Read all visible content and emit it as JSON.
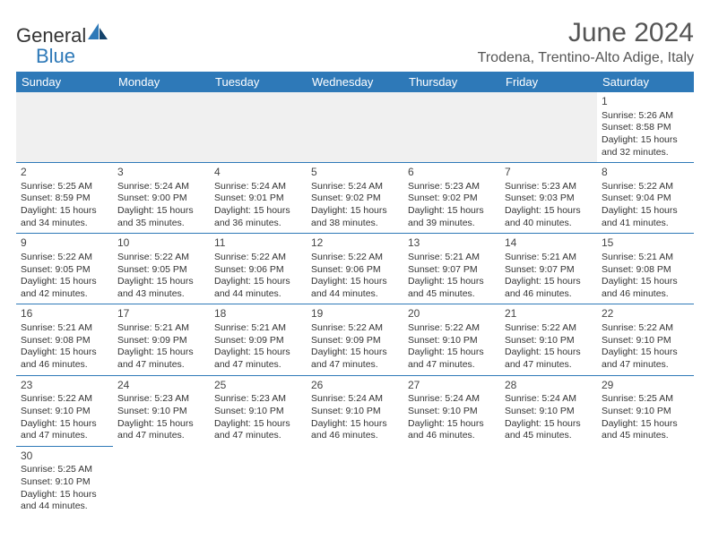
{
  "brand": {
    "part1": "General",
    "part2": "Blue"
  },
  "title": "June 2024",
  "location": "Trodena, Trentino-Alto Adige, Italy",
  "colors": {
    "header_bg": "#2e79b8",
    "header_text": "#ffffff",
    "rule": "#2e79b8",
    "blank_bg": "#f0f0f0",
    "body_text": "#333333",
    "title_text": "#555555"
  },
  "dayHeaders": [
    "Sunday",
    "Monday",
    "Tuesday",
    "Wednesday",
    "Thursday",
    "Friday",
    "Saturday"
  ],
  "weeks": [
    [
      null,
      null,
      null,
      null,
      null,
      null,
      {
        "n": "1",
        "sr": "Sunrise: 5:26 AM",
        "ss": "Sunset: 8:58 PM",
        "dl": "Daylight: 15 hours and 32 minutes."
      }
    ],
    [
      {
        "n": "2",
        "sr": "Sunrise: 5:25 AM",
        "ss": "Sunset: 8:59 PM",
        "dl": "Daylight: 15 hours and 34 minutes."
      },
      {
        "n": "3",
        "sr": "Sunrise: 5:24 AM",
        "ss": "Sunset: 9:00 PM",
        "dl": "Daylight: 15 hours and 35 minutes."
      },
      {
        "n": "4",
        "sr": "Sunrise: 5:24 AM",
        "ss": "Sunset: 9:01 PM",
        "dl": "Daylight: 15 hours and 36 minutes."
      },
      {
        "n": "5",
        "sr": "Sunrise: 5:24 AM",
        "ss": "Sunset: 9:02 PM",
        "dl": "Daylight: 15 hours and 38 minutes."
      },
      {
        "n": "6",
        "sr": "Sunrise: 5:23 AM",
        "ss": "Sunset: 9:02 PM",
        "dl": "Daylight: 15 hours and 39 minutes."
      },
      {
        "n": "7",
        "sr": "Sunrise: 5:23 AM",
        "ss": "Sunset: 9:03 PM",
        "dl": "Daylight: 15 hours and 40 minutes."
      },
      {
        "n": "8",
        "sr": "Sunrise: 5:22 AM",
        "ss": "Sunset: 9:04 PM",
        "dl": "Daylight: 15 hours and 41 minutes."
      }
    ],
    [
      {
        "n": "9",
        "sr": "Sunrise: 5:22 AM",
        "ss": "Sunset: 9:05 PM",
        "dl": "Daylight: 15 hours and 42 minutes."
      },
      {
        "n": "10",
        "sr": "Sunrise: 5:22 AM",
        "ss": "Sunset: 9:05 PM",
        "dl": "Daylight: 15 hours and 43 minutes."
      },
      {
        "n": "11",
        "sr": "Sunrise: 5:22 AM",
        "ss": "Sunset: 9:06 PM",
        "dl": "Daylight: 15 hours and 44 minutes."
      },
      {
        "n": "12",
        "sr": "Sunrise: 5:22 AM",
        "ss": "Sunset: 9:06 PM",
        "dl": "Daylight: 15 hours and 44 minutes."
      },
      {
        "n": "13",
        "sr": "Sunrise: 5:21 AM",
        "ss": "Sunset: 9:07 PM",
        "dl": "Daylight: 15 hours and 45 minutes."
      },
      {
        "n": "14",
        "sr": "Sunrise: 5:21 AM",
        "ss": "Sunset: 9:07 PM",
        "dl": "Daylight: 15 hours and 46 minutes."
      },
      {
        "n": "15",
        "sr": "Sunrise: 5:21 AM",
        "ss": "Sunset: 9:08 PM",
        "dl": "Daylight: 15 hours and 46 minutes."
      }
    ],
    [
      {
        "n": "16",
        "sr": "Sunrise: 5:21 AM",
        "ss": "Sunset: 9:08 PM",
        "dl": "Daylight: 15 hours and 46 minutes."
      },
      {
        "n": "17",
        "sr": "Sunrise: 5:21 AM",
        "ss": "Sunset: 9:09 PM",
        "dl": "Daylight: 15 hours and 47 minutes."
      },
      {
        "n": "18",
        "sr": "Sunrise: 5:21 AM",
        "ss": "Sunset: 9:09 PM",
        "dl": "Daylight: 15 hours and 47 minutes."
      },
      {
        "n": "19",
        "sr": "Sunrise: 5:22 AM",
        "ss": "Sunset: 9:09 PM",
        "dl": "Daylight: 15 hours and 47 minutes."
      },
      {
        "n": "20",
        "sr": "Sunrise: 5:22 AM",
        "ss": "Sunset: 9:10 PM",
        "dl": "Daylight: 15 hours and 47 minutes."
      },
      {
        "n": "21",
        "sr": "Sunrise: 5:22 AM",
        "ss": "Sunset: 9:10 PM",
        "dl": "Daylight: 15 hours and 47 minutes."
      },
      {
        "n": "22",
        "sr": "Sunrise: 5:22 AM",
        "ss": "Sunset: 9:10 PM",
        "dl": "Daylight: 15 hours and 47 minutes."
      }
    ],
    [
      {
        "n": "23",
        "sr": "Sunrise: 5:22 AM",
        "ss": "Sunset: 9:10 PM",
        "dl": "Daylight: 15 hours and 47 minutes."
      },
      {
        "n": "24",
        "sr": "Sunrise: 5:23 AM",
        "ss": "Sunset: 9:10 PM",
        "dl": "Daylight: 15 hours and 47 minutes."
      },
      {
        "n": "25",
        "sr": "Sunrise: 5:23 AM",
        "ss": "Sunset: 9:10 PM",
        "dl": "Daylight: 15 hours and 47 minutes."
      },
      {
        "n": "26",
        "sr": "Sunrise: 5:24 AM",
        "ss": "Sunset: 9:10 PM",
        "dl": "Daylight: 15 hours and 46 minutes."
      },
      {
        "n": "27",
        "sr": "Sunrise: 5:24 AM",
        "ss": "Sunset: 9:10 PM",
        "dl": "Daylight: 15 hours and 46 minutes."
      },
      {
        "n": "28",
        "sr": "Sunrise: 5:24 AM",
        "ss": "Sunset: 9:10 PM",
        "dl": "Daylight: 15 hours and 45 minutes."
      },
      {
        "n": "29",
        "sr": "Sunrise: 5:25 AM",
        "ss": "Sunset: 9:10 PM",
        "dl": "Daylight: 15 hours and 45 minutes."
      }
    ],
    [
      {
        "n": "30",
        "sr": "Sunrise: 5:25 AM",
        "ss": "Sunset: 9:10 PM",
        "dl": "Daylight: 15 hours and 44 minutes."
      },
      null,
      null,
      null,
      null,
      null,
      null
    ]
  ]
}
